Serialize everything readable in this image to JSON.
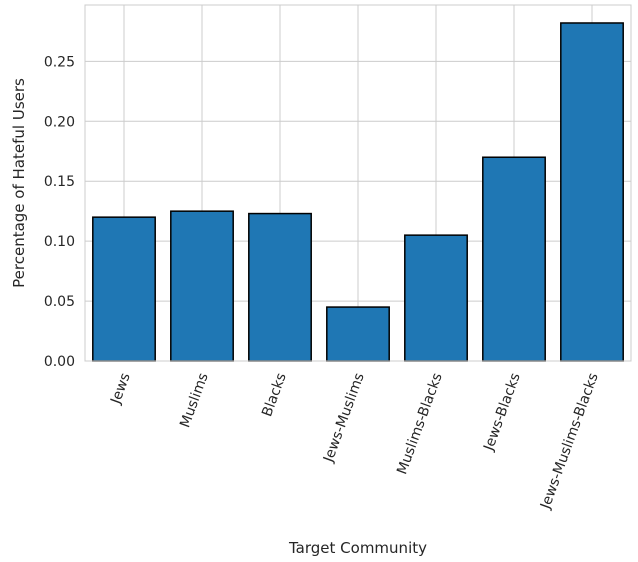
{
  "chart_data": {
    "type": "bar",
    "title": "",
    "xlabel": "Target Community",
    "ylabel": "Percentage of Hateful Users",
    "categories": [
      "Jews",
      "Muslims",
      "Blacks",
      "Jews-Muslims",
      "Muslims-Blacks",
      "Jews-Blacks",
      "Jews-Muslims-Blacks"
    ],
    "values": [
      0.12,
      0.125,
      0.123,
      0.045,
      0.105,
      0.17,
      0.282
    ],
    "ylim": [
      0,
      0.297
    ],
    "yticks": [
      "0.00",
      "0.05",
      "0.10",
      "0.15",
      "0.20",
      "0.25"
    ],
    "grid": true,
    "colors": {
      "bar": "#1f77b4",
      "bar_edge": "#000000",
      "grid": "#cccccc",
      "frame": "#cccccc"
    }
  }
}
